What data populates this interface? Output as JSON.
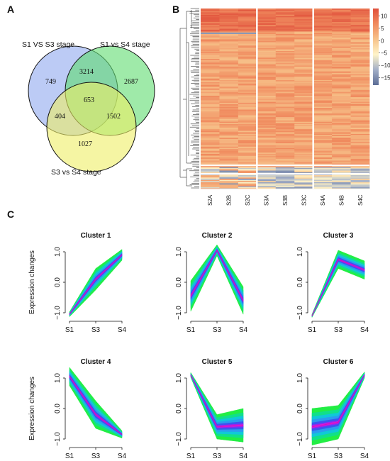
{
  "panels": {
    "a": "A",
    "b": "B",
    "c": "C"
  },
  "venn": {
    "set1": "S1 VS S3 stage",
    "set2": "S1 vs S4 stage",
    "set3": "S3 vs S4 stage",
    "only1": "749",
    "s1_s2": "3214",
    "only2": "2687",
    "all": "653",
    "s1_s3": "404",
    "s2_s3": "1502",
    "only3": "1027",
    "colors": {
      "set1": "#8fa8ee",
      "set2": "#5fdc6f",
      "set3": "#eeee66"
    }
  },
  "heatmap": {
    "columns": [
      "S2A",
      "S2B",
      "S2C",
      "S3A",
      "S3B",
      "S3C",
      "S4A",
      "S4B",
      "S4C"
    ],
    "colorbar": {
      "ticks": [
        "10",
        "5",
        "0",
        "−5",
        "−10",
        "−15"
      ],
      "tick_values": [
        10,
        5,
        0,
        -5,
        -10,
        -15
      ],
      "range": [
        -18,
        13
      ],
      "colors": [
        "#5b6d96",
        "#a3afc8",
        "#fff4c8",
        "#f7c28a",
        "#f08a5e",
        "#e0503b"
      ]
    }
  },
  "clusters": {
    "ylabel": "Expression changes",
    "xticks": [
      "S1",
      "S3",
      "S4"
    ],
    "yticks": [
      "1.0",
      "0.0",
      "−1.0"
    ],
    "items": [
      {
        "title": "Cluster 1",
        "center": [
          -1.05,
          0.1,
          0.9
        ],
        "spread": [
          0.08,
          0.35,
          0.18
        ]
      },
      {
        "title": "Cluster 2",
        "center": [
          -0.45,
          1.05,
          -0.6
        ],
        "spread": [
          0.5,
          0.18,
          0.45
        ]
      },
      {
        "title": "Cluster 3",
        "center": [
          -1.1,
          0.75,
          0.4
        ],
        "spread": [
          0.05,
          0.3,
          0.3
        ]
      },
      {
        "title": "Cluster 4",
        "center": [
          1.05,
          -0.2,
          -0.85
        ],
        "spread": [
          0.3,
          0.45,
          0.12
        ]
      },
      {
        "title": "Cluster 5",
        "center": [
          1.1,
          -0.6,
          -0.55
        ],
        "spread": [
          0.08,
          0.4,
          0.55
        ]
      },
      {
        "title": "Cluster 6",
        "center": [
          -0.6,
          -0.45,
          1.1
        ],
        "spread": [
          0.6,
          0.55,
          0.1
        ]
      }
    ]
  }
}
